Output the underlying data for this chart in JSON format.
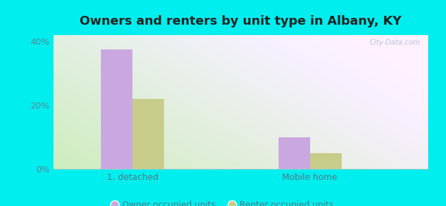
{
  "title": "Owners and renters by unit type in Albany, KY",
  "categories": [
    "1, detached",
    "Mobile home"
  ],
  "owner_values": [
    37.5,
    10.0
  ],
  "renter_values": [
    22.0,
    5.0
  ],
  "owner_color": "#c9a8e0",
  "renter_color": "#c8cc8a",
  "owner_label": "Owner occupied units",
  "renter_label": "Renter occupied units",
  "ylim": [
    0,
    42
  ],
  "yticks": [
    0,
    20,
    40
  ],
  "ytick_labels": [
    "0%",
    "20%",
    "40%"
  ],
  "outer_background": "#00eeee",
  "bar_width": 0.32,
  "group_positions": [
    1.0,
    2.8
  ],
  "watermark": "City-Data.com",
  "grad_colors": [
    "#cce8bb",
    "#e8f5e2",
    "#eaf0f8",
    "#f5eef8"
  ],
  "title_fontsize": 13
}
